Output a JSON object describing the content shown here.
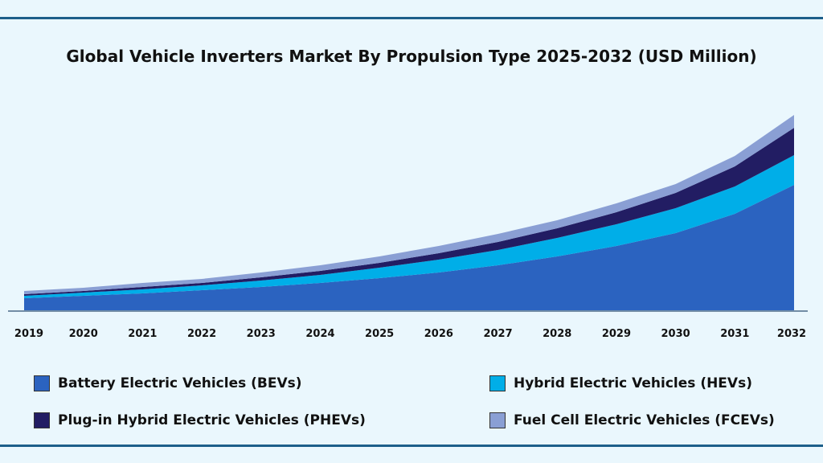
{
  "chart_data": {
    "type": "area",
    "stacked": true,
    "title": "Global Vehicle Inverters Market By Propulsion Type 2025-2032 (USD Million)",
    "xlabel": "",
    "ylabel": "",
    "y_axis_shown": false,
    "grid": false,
    "legend_position": "bottom",
    "categories": [
      "2019",
      "2020",
      "2021",
      "2022",
      "2023",
      "2024",
      "2025",
      "2026",
      "2027",
      "2028",
      "2029",
      "2030",
      "2031",
      "2032"
    ],
    "series": [
      {
        "name": "Battery Electric Vehicles (BEVs)",
        "color": "#2b63c0",
        "values": [
          15,
          18,
          21,
          25,
          29,
          34,
          40,
          47,
          56,
          67,
          80,
          96,
          120,
          156
        ]
      },
      {
        "name": "Hybrid Electric Vehicles (HEVs)",
        "color": "#00aee8",
        "values": [
          3,
          4,
          5,
          6,
          8,
          10,
          13,
          16,
          19,
          23,
          27,
          31,
          34,
          37
        ]
      },
      {
        "name": "Plug-in Hybrid Electric Vehicles (PHEVs)",
        "color": "#221d63",
        "values": [
          2,
          2,
          3,
          3,
          4,
          5,
          6,
          8,
          10,
          12,
          15,
          19,
          25,
          34
        ]
      },
      {
        "name": "Fuel Cell Electric Vehicles (FCEVs)",
        "color": "#8a9fd4",
        "values": [
          4,
          4,
          5,
          5,
          6,
          7,
          8,
          9,
          10,
          10,
          11,
          11,
          13,
          16
        ]
      }
    ],
    "note_values": "relative (no y-axis printed)"
  }
}
